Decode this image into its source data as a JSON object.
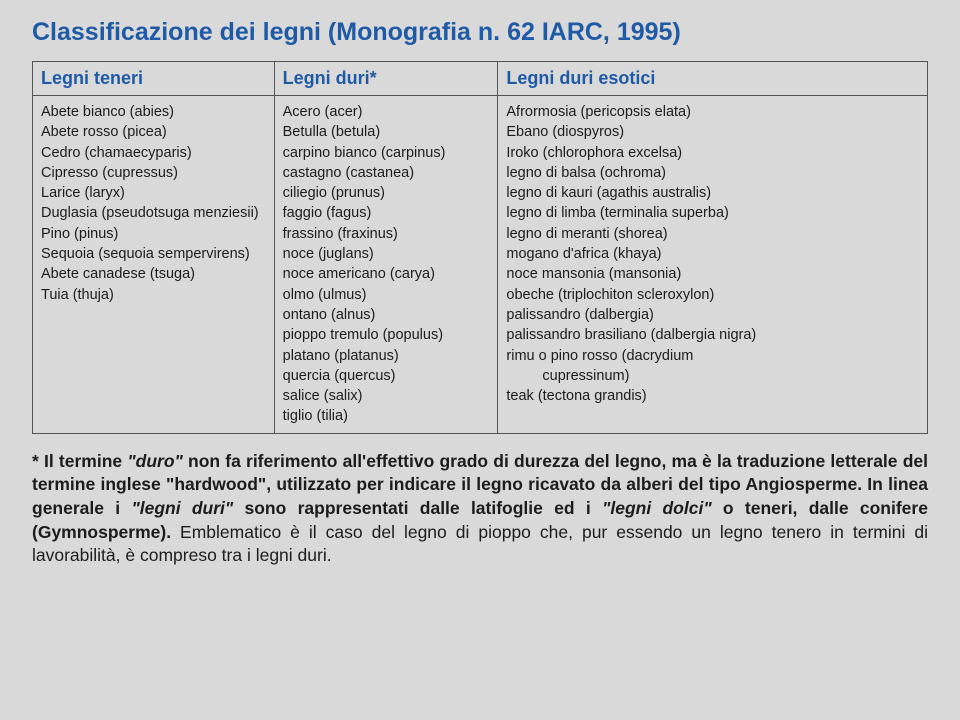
{
  "title": "Classificazione dei legni (Monografia n. 62 IARC, 1995)",
  "headers": {
    "col1": "Legni teneri",
    "col2": "Legni duri*",
    "col3": "Legni duri esotici"
  },
  "col1": [
    "Abete bianco (abies)",
    "Abete rosso (picea)",
    "Cedro (chamaecyparis)",
    "Cipresso (cupressus)",
    "Larice (laryx)",
    "Duglasia (pseudotsuga menziesii)",
    "Pino (pinus)",
    "Sequoia (sequoia sempervirens)",
    "Abete canadese (tsuga)",
    "Tuia (thuja)"
  ],
  "col2": [
    "Acero (acer)",
    "Betulla (betula)",
    "carpino bianco (carpinus)",
    "castagno (castanea)",
    "ciliegio (prunus)",
    "faggio (fagus)",
    "frassino (fraxinus)",
    "noce (juglans)",
    "noce americano (carya)",
    "olmo (ulmus)",
    "ontano (alnus)",
    "pioppo tremulo (populus)",
    "platano (platanus)",
    "quercia (quercus)",
    "salice (salix)",
    "tiglio (tilia)"
  ],
  "col3": [
    "Afrormosia (pericopsis elata)",
    "Ebano (diospyros)",
    "Iroko (chlorophora excelsa)",
    "legno di balsa (ochroma)",
    "legno di kauri (agathis australis)",
    "legno di limba (terminalia superba)",
    "legno di meranti (shorea)",
    "mogano d'africa (khaya)",
    "noce mansonia (mansonia)",
    "obeche (triplochiton scleroxylon)",
    "palissandro (dalbergia)",
    "palissandro brasiliano (dalbergia nigra)",
    "rimu o pino rosso (dacrydium"
  ],
  "col3_indent": "cupressinum)",
  "col3_last": "teak (tectona grandis)",
  "footnote": {
    "p1a": "* Il termine ",
    "p1b": "\"duro\"",
    "p1c": " non fa riferimento all'effettivo grado di durezza del legno, ma è la traduzione letterale del termine inglese \"hardwood\", utilizzato per indicare il legno ricavato da alberi del tipo Angiosperme. In linea generale i ",
    "p1d": "\"legni duri\"",
    "p1e": " sono rappresentati dalle latifoglie ed i ",
    "p1f": "\"legni dolci\"",
    "p1g": " o teneri, dalle conifere (Gymnosperme). ",
    "p1h": "Emblematico è il caso del legno di pioppo che, pur essendo un legno tenero in termini di lavorabilità, è compreso tra i legni duri."
  }
}
